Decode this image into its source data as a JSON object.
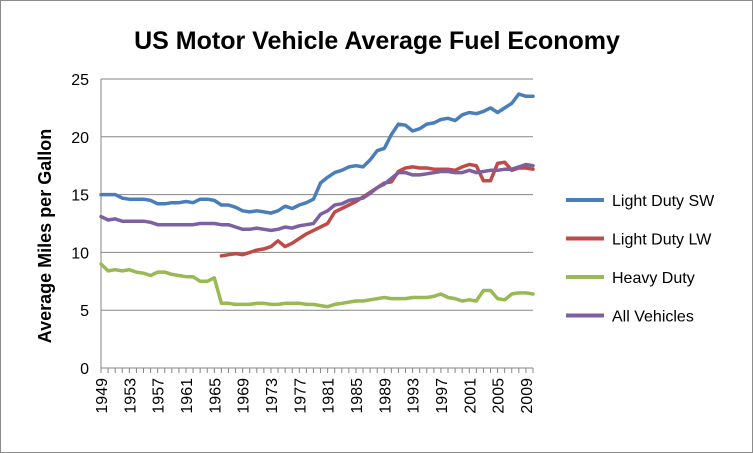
{
  "chart_data": {
    "type": "line",
    "title": "US Motor Vehicle Average Fuel Economy",
    "xlabel": "",
    "ylabel": "Average Miles per Gallon",
    "ylim": [
      0,
      25
    ],
    "yticks": [
      0,
      5,
      10,
      15,
      20,
      25
    ],
    "x": [
      1949,
      1950,
      1951,
      1952,
      1953,
      1954,
      1955,
      1956,
      1957,
      1958,
      1959,
      1960,
      1961,
      1962,
      1963,
      1964,
      1965,
      1966,
      1967,
      1968,
      1969,
      1970,
      1971,
      1972,
      1973,
      1974,
      1975,
      1976,
      1977,
      1978,
      1979,
      1980,
      1981,
      1982,
      1983,
      1984,
      1985,
      1986,
      1987,
      1988,
      1989,
      1990,
      1991,
      1992,
      1993,
      1994,
      1995,
      1996,
      1997,
      1998,
      1999,
      2000,
      2001,
      2002,
      2003,
      2004,
      2005,
      2006,
      2007,
      2008,
      2009,
      2010
    ],
    "xtick_labels": [
      "1949",
      "1953",
      "1957",
      "1961",
      "1965",
      "1969",
      "1973",
      "1977",
      "1981",
      "1985",
      "1989",
      "1993",
      "1997",
      "2001",
      "2005",
      "2009"
    ],
    "grid": "horizontal",
    "legend_position": "right",
    "series": [
      {
        "name": "Light Duty SW",
        "color": "#4a7ebb",
        "values": [
          15.0,
          15.0,
          15.0,
          14.7,
          14.6,
          14.6,
          14.6,
          14.5,
          14.2,
          14.2,
          14.3,
          14.3,
          14.4,
          14.3,
          14.6,
          14.6,
          14.5,
          14.1,
          14.1,
          13.9,
          13.6,
          13.5,
          13.6,
          13.5,
          13.4,
          13.6,
          14.0,
          13.8,
          14.1,
          14.3,
          14.6,
          16.0,
          16.5,
          16.9,
          17.1,
          17.4,
          17.5,
          17.4,
          18.0,
          18.8,
          19.0,
          20.2,
          21.1,
          21.0,
          20.5,
          20.7,
          21.1,
          21.2,
          21.5,
          21.6,
          21.4,
          21.9,
          22.1,
          22.0,
          22.2,
          22.5,
          22.1,
          22.5,
          22.9,
          23.7,
          23.5,
          23.5
        ]
      },
      {
        "name": "Light Duty LW",
        "color": "#be4b48",
        "values": [
          null,
          null,
          null,
          null,
          null,
          null,
          null,
          null,
          null,
          null,
          null,
          null,
          null,
          null,
          null,
          null,
          null,
          9.7,
          9.8,
          9.9,
          9.8,
          10.0,
          10.2,
          10.3,
          10.5,
          11.0,
          10.5,
          10.8,
          11.2,
          11.6,
          11.9,
          12.2,
          12.5,
          13.5,
          13.8,
          14.1,
          14.4,
          14.8,
          15.2,
          15.6,
          16.0,
          16.1,
          17.0,
          17.3,
          17.4,
          17.3,
          17.3,
          17.2,
          17.2,
          17.2,
          17.1,
          17.4,
          17.6,
          17.5,
          16.2,
          16.2,
          17.7,
          17.8,
          17.1,
          17.3,
          17.3,
          17.2
        ]
      },
      {
        "name": "Heavy Duty",
        "color": "#98b954",
        "values": [
          9.0,
          8.4,
          8.5,
          8.4,
          8.5,
          8.3,
          8.2,
          8.0,
          8.3,
          8.3,
          8.1,
          8.0,
          7.9,
          7.9,
          7.5,
          7.5,
          7.8,
          5.6,
          5.6,
          5.5,
          5.5,
          5.5,
          5.6,
          5.6,
          5.5,
          5.5,
          5.6,
          5.6,
          5.6,
          5.5,
          5.5,
          5.4,
          5.3,
          5.5,
          5.6,
          5.7,
          5.8,
          5.8,
          5.9,
          6.0,
          6.1,
          6.0,
          6.0,
          6.0,
          6.1,
          6.1,
          6.1,
          6.2,
          6.4,
          6.1,
          6.0,
          5.8,
          5.9,
          5.8,
          6.7,
          6.7,
          6.0,
          5.9,
          6.4,
          6.5,
          6.5,
          6.4
        ]
      },
      {
        "name": "All Vehicles",
        "color": "#7d60a0",
        "values": [
          13.1,
          12.8,
          12.9,
          12.7,
          12.7,
          12.7,
          12.7,
          12.6,
          12.4,
          12.4,
          12.4,
          12.4,
          12.4,
          12.4,
          12.5,
          12.5,
          12.5,
          12.4,
          12.4,
          12.2,
          12.0,
          12.0,
          12.1,
          12.0,
          11.9,
          12.0,
          12.2,
          12.1,
          12.3,
          12.4,
          12.5,
          13.3,
          13.6,
          14.1,
          14.2,
          14.5,
          14.6,
          14.7,
          15.1,
          15.6,
          15.9,
          16.4,
          16.9,
          16.9,
          16.7,
          16.7,
          16.8,
          16.9,
          17.0,
          17.0,
          16.9,
          16.9,
          17.1,
          16.9,
          17.0,
          17.1,
          17.1,
          17.2,
          17.2,
          17.4,
          17.6,
          17.5
        ]
      }
    ]
  }
}
